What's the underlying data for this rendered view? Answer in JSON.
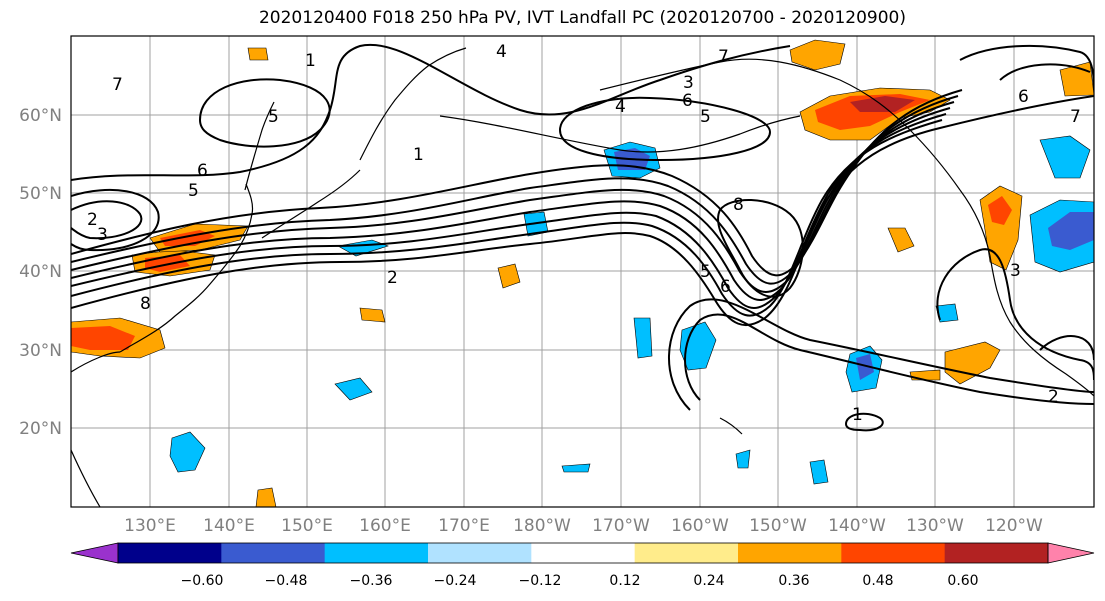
{
  "title": "2020120400 F018 250 hPa PV, IVT Landfall PC (2020120700 - 2020120900)",
  "map": {
    "lat_labels": [
      "60°N",
      "50°N",
      "40°N",
      "30°N",
      "20°N"
    ],
    "lon_labels": [
      "130°E",
      "140°E",
      "150°E",
      "160°E",
      "170°E",
      "180°W",
      "170°W",
      "160°W",
      "150°W",
      "140°W",
      "130°W",
      "120°W"
    ],
    "contour_labels": [
      "7",
      "1",
      "4",
      "7",
      "3",
      "4",
      "6",
      "5",
      "1",
      "5",
      "6",
      "5",
      "2",
      "3",
      "8",
      "2",
      "5",
      "6",
      "8",
      "3",
      "6",
      "7",
      "2",
      "1"
    ],
    "colors": {
      "background": "#ffffff",
      "grid": "#a0a0a0",
      "coast": "#000000",
      "contour": "#000000",
      "axis_label": "#808080"
    }
  },
  "colorbar": {
    "tick_labels": [
      "−0.60",
      "−0.48",
      "−0.36",
      "−0.24",
      "−0.12",
      "0.12",
      "0.24",
      "0.36",
      "0.48",
      "0.60"
    ],
    "colors": [
      "#9a32cd",
      "#00008b",
      "#3a5bd0",
      "#00bfff",
      "#b0e2ff",
      "#ffffff",
      "#ffec8b",
      "#ffa500",
      "#ff4500",
      "#b22222",
      "#ff82ab"
    ],
    "extend": "both"
  }
}
